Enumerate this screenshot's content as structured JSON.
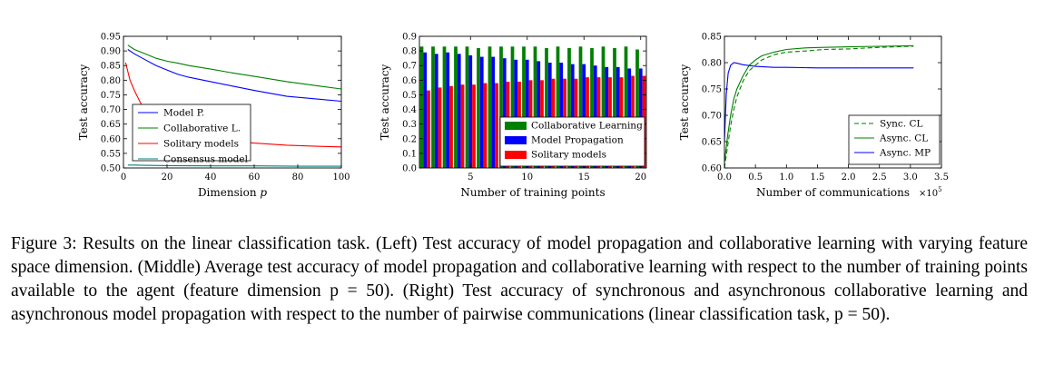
{
  "caption": "Figure 3: Results on the linear classification task. (Left) Test accuracy of model propagation and collaborative learning with varying feature space dimension. (Middle) Average test accuracy of model propagation and collaborative learning with respect to the number of training points available to the agent (feature dimension p = 50). (Right) Test accuracy of synchronous and asynchronous collaborative learning and asynchronous model propagation with respect to the number of pairwise communications (linear classification task, p = 50).",
  "chart_data": [
    {
      "type": "line",
      "xlabel": "Dimension p",
      "ylabel": "Test accuracy",
      "xlim": [
        0,
        100
      ],
      "ylim": [
        0.5,
        0.95
      ],
      "xticks": [
        0,
        20,
        40,
        60,
        80,
        100
      ],
      "yticks": [
        0.5,
        0.55,
        0.6,
        0.65,
        0.7,
        0.75,
        0.8,
        0.85,
        0.9,
        0.95
      ],
      "legend_position": "lower-left",
      "series": [
        {
          "name": "Model P.",
          "color": "#0000ff",
          "style": "solid",
          "x": [
            2,
            5,
            10,
            15,
            20,
            25,
            30,
            40,
            50,
            60,
            75,
            90,
            100
          ],
          "y": [
            0.905,
            0.89,
            0.87,
            0.85,
            0.835,
            0.82,
            0.81,
            0.795,
            0.78,
            0.765,
            0.745,
            0.735,
            0.728
          ]
        },
        {
          "name": "Collaborative L.",
          "color": "#008000",
          "style": "solid",
          "x": [
            2,
            5,
            10,
            15,
            20,
            25,
            30,
            40,
            50,
            60,
            75,
            90,
            100
          ],
          "y": [
            0.92,
            0.905,
            0.89,
            0.875,
            0.865,
            0.858,
            0.85,
            0.838,
            0.825,
            0.813,
            0.795,
            0.78,
            0.77
          ]
        },
        {
          "name": "Solitary models",
          "color": "#ff0000",
          "style": "solid",
          "x": [
            1,
            2,
            3,
            5,
            8,
            10,
            15,
            20,
            30,
            40,
            50,
            60,
            75,
            90,
            100
          ],
          "y": [
            0.86,
            0.83,
            0.8,
            0.765,
            0.72,
            0.7,
            0.665,
            0.64,
            0.615,
            0.6,
            0.592,
            0.585,
            0.578,
            0.574,
            0.572
          ]
        },
        {
          "name": "Consensus model",
          "color": "#008080",
          "style": "solid",
          "x": [
            2,
            5,
            10,
            20,
            40,
            60,
            80,
            100
          ],
          "y": [
            0.51,
            0.51,
            0.509,
            0.508,
            0.507,
            0.507,
            0.506,
            0.506
          ]
        }
      ]
    },
    {
      "type": "bar",
      "xlabel": "Number of training points",
      "ylabel": "Test accuracy",
      "ylim": [
        0.0,
        0.9
      ],
      "xticks": [
        5,
        10,
        15,
        20
      ],
      "yticks": [
        0.0,
        0.1,
        0.2,
        0.3,
        0.4,
        0.5,
        0.6,
        0.7,
        0.8,
        0.9
      ],
      "legend_position": "lower-right",
      "categories": [
        1,
        2,
        3,
        4,
        5,
        6,
        7,
        8,
        9,
        10,
        11,
        12,
        13,
        14,
        15,
        16,
        17,
        18,
        19,
        20
      ],
      "series": [
        {
          "name": "Collaborative Learning",
          "color": "#008000",
          "values": [
            0.83,
            0.83,
            0.83,
            0.83,
            0.83,
            0.82,
            0.83,
            0.83,
            0.83,
            0.83,
            0.83,
            0.82,
            0.83,
            0.82,
            0.83,
            0.82,
            0.83,
            0.82,
            0.83,
            0.81
          ]
        },
        {
          "name": "Model Propagation",
          "color": "#0000ff",
          "values": [
            0.79,
            0.78,
            0.79,
            0.78,
            0.77,
            0.76,
            0.76,
            0.75,
            0.74,
            0.74,
            0.73,
            0.72,
            0.72,
            0.71,
            0.71,
            0.7,
            0.69,
            0.69,
            0.68,
            0.68
          ]
        },
        {
          "name": "Solitary models",
          "color": "#ff0000",
          "values": [
            0.53,
            0.55,
            0.56,
            0.57,
            0.57,
            0.58,
            0.58,
            0.59,
            0.59,
            0.6,
            0.6,
            0.61,
            0.61,
            0.61,
            0.62,
            0.62,
            0.62,
            0.62,
            0.63,
            0.63
          ]
        }
      ]
    },
    {
      "type": "line",
      "xlabel": "Number of communications",
      "x_scale_label": "×10",
      "x_scale_exp": "5",
      "ylabel": "Test accuracy",
      "xlim": [
        0.0,
        3.5
      ],
      "ylim": [
        0.6,
        0.85
      ],
      "xticks": [
        0.0,
        0.5,
        1.0,
        1.5,
        2.0,
        2.5,
        3.0,
        3.5
      ],
      "yticks": [
        0.6,
        0.65,
        0.7,
        0.75,
        0.8,
        0.85
      ],
      "legend_position": "lower-right",
      "series": [
        {
          "name": "Sync. CL",
          "color": "#008000",
          "style": "dashed",
          "x": [
            0.0,
            0.05,
            0.1,
            0.15,
            0.2,
            0.3,
            0.4,
            0.5,
            0.6,
            0.8,
            1.0,
            1.3,
            1.6,
            2.0,
            2.5,
            3.0,
            3.05
          ],
          "y": [
            0.6,
            0.64,
            0.68,
            0.71,
            0.735,
            0.765,
            0.785,
            0.795,
            0.805,
            0.815,
            0.82,
            0.822,
            0.825,
            0.826,
            0.829,
            0.831,
            0.831
          ]
        },
        {
          "name": "Async. CL",
          "color": "#008000",
          "style": "solid",
          "x": [
            0.0,
            0.05,
            0.1,
            0.15,
            0.2,
            0.3,
            0.4,
            0.5,
            0.6,
            0.8,
            1.0,
            1.3,
            1.6,
            2.0,
            2.5,
            3.0,
            3.05
          ],
          "y": [
            0.61,
            0.66,
            0.7,
            0.73,
            0.75,
            0.775,
            0.795,
            0.805,
            0.813,
            0.82,
            0.825,
            0.828,
            0.829,
            0.83,
            0.831,
            0.832,
            0.832
          ]
        },
        {
          "name": "Async. MP",
          "color": "#0000ff",
          "style": "solid",
          "x": [
            0.0,
            0.03,
            0.06,
            0.1,
            0.15,
            0.2,
            0.3,
            0.5,
            0.8,
            1.0,
            1.5,
            2.0,
            2.5,
            3.0,
            3.05
          ],
          "y": [
            0.65,
            0.74,
            0.78,
            0.795,
            0.8,
            0.799,
            0.796,
            0.793,
            0.791,
            0.791,
            0.79,
            0.79,
            0.79,
            0.79,
            0.79
          ]
        }
      ]
    }
  ]
}
